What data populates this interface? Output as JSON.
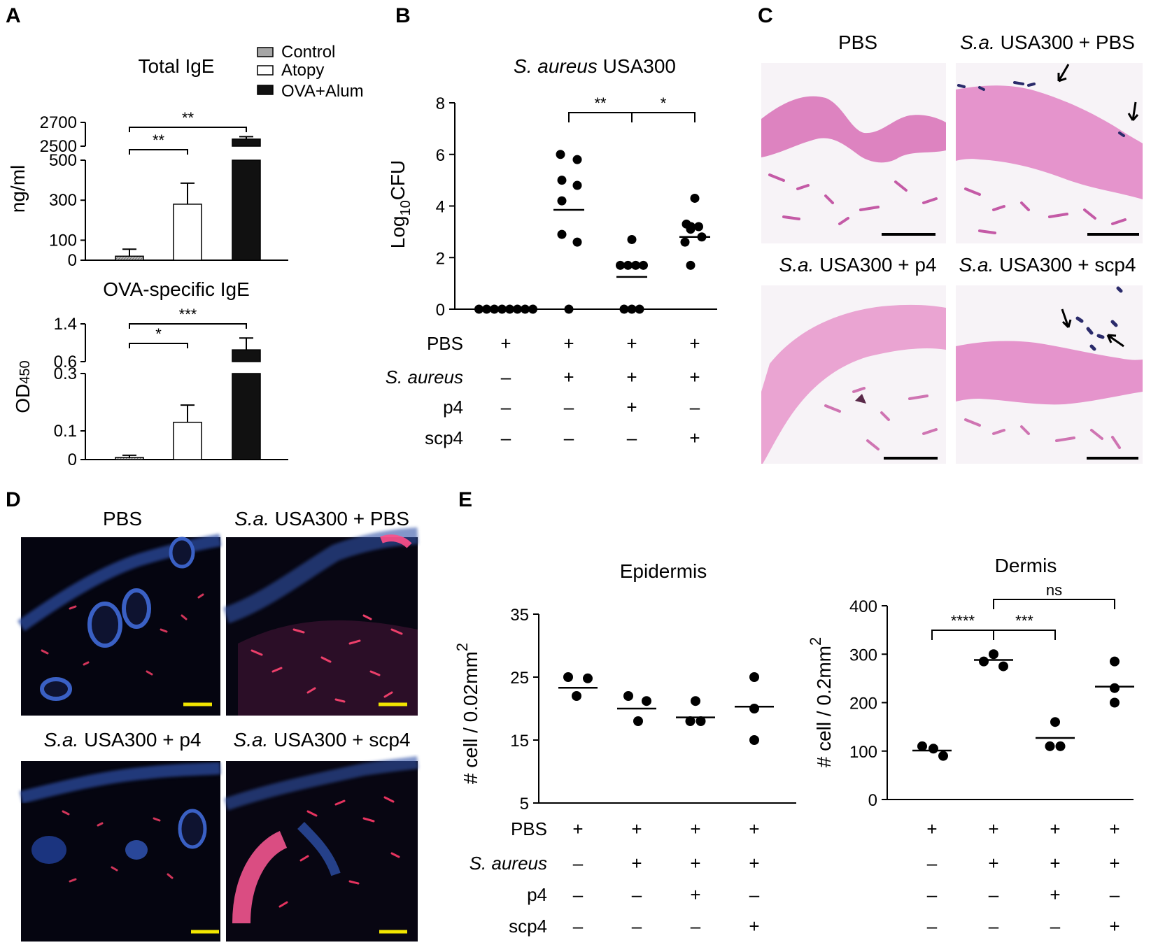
{
  "panels": {
    "A": {
      "letter": "A",
      "legend": [
        {
          "label": "Control",
          "color": "#a6a6a6"
        },
        {
          "label": "Atopy",
          "color": "#ffffff"
        },
        {
          "label": "OVA+Alum",
          "color": "#111111"
        }
      ]
    },
    "B": {
      "letter": "B"
    },
    "C": {
      "letter": "C",
      "images": [
        {
          "label_italic": "",
          "label": "PBS"
        },
        {
          "label_italic": "S.a.",
          "label": " USA300 + PBS"
        },
        {
          "label_italic": "S.a.",
          "label": " USA300 + p4"
        },
        {
          "label_italic": "S.a.",
          "label": " USA300 + scp4"
        }
      ]
    },
    "D": {
      "letter": "D",
      "images": [
        {
          "label_italic": "",
          "label": "PBS"
        },
        {
          "label_italic": "S.a.",
          "label": " USA300 + PBS"
        },
        {
          "label_italic": "S.a.",
          "label": " USA300 + p4"
        },
        {
          "label_italic": "S.a.",
          "label": " USA300 + scp4"
        }
      ]
    },
    "E": {
      "letter": "E"
    }
  },
  "chart_data": [
    {
      "id": "A-top",
      "type": "bar",
      "title": "Total IgE",
      "ylabel": "ng/ml",
      "categories": [
        "Control",
        "Atopy",
        "OVA+Alum"
      ],
      "values": [
        20,
        280,
        2560
      ],
      "errors": [
        35,
        105,
        20
      ],
      "colors": [
        "#a6a6a6",
        "#ffffff",
        "#111111"
      ],
      "broken_axis": {
        "lower": [
          0,
          500
        ],
        "upper": [
          2500,
          2700
        ]
      },
      "yticks_lower": [
        0,
        100,
        300,
        500
      ],
      "yticks_upper": [
        2500,
        2700
      ],
      "yticklabels_lower": [
        "0",
        "100",
        "300",
        "500"
      ],
      "yticklabels_upper": [
        "2500",
        "2700"
      ],
      "significance": [
        {
          "from": 0,
          "to": 1,
          "label": "**"
        },
        {
          "from": 0,
          "to": 2,
          "label": "**"
        }
      ]
    },
    {
      "id": "A-bottom",
      "type": "bar",
      "title": "OVA-specific IgE",
      "ylabel": "OD450",
      "categories": [
        "Control",
        "Atopy",
        "OVA+Alum"
      ],
      "values": [
        0.005,
        0.13,
        0.85
      ],
      "errors": [
        0.01,
        0.06,
        0.25
      ],
      "colors": [
        "#a6a6a6",
        "#ffffff",
        "#111111"
      ],
      "broken_axis": {
        "lower": [
          0,
          0.3
        ],
        "upper": [
          0.6,
          1.4
        ]
      },
      "yticks_lower": [
        0,
        0.1,
        0.3
      ],
      "yticks_upper": [
        0.6,
        1.4
      ],
      "yticklabels_lower": [
        "0",
        "0.1",
        "0.3"
      ],
      "yticklabels_upper": [
        "0.6",
        "1.4"
      ],
      "significance": [
        {
          "from": 0,
          "to": 1,
          "label": "*"
        },
        {
          "from": 0,
          "to": 2,
          "label": "***"
        }
      ]
    },
    {
      "id": "B",
      "type": "scatter",
      "title_italic": "S. aureus",
      "title_rest": " USA300",
      "ylabel_main": "Log",
      "ylabel_sub": "10",
      "ylabel_tail": "CFU",
      "ylim": [
        0,
        8
      ],
      "yticks": [
        0,
        2,
        4,
        6,
        8
      ],
      "groups": [
        {
          "points": [
            0,
            0,
            0,
            0,
            0,
            0,
            0,
            0
          ],
          "mean": 0
        },
        {
          "points": [
            6.0,
            5.8,
            5.0,
            4.8,
            4.2,
            2.9,
            2.6,
            0
          ],
          "mean": 3.85
        },
        {
          "points": [
            2.7,
            1.7,
            1.7,
            1.7,
            1.7,
            0,
            0,
            0
          ],
          "mean": 1.25
        },
        {
          "points": [
            4.3,
            3.3,
            3.2,
            3.2,
            3.1,
            2.8,
            2.6,
            1.7
          ],
          "mean": 2.8
        }
      ],
      "significance": [
        {
          "from": 1,
          "to": 2,
          "label": "**"
        },
        {
          "from": 2,
          "to": 3,
          "label": "*"
        }
      ],
      "conditions": [
        {
          "name": "PBS",
          "italic": false,
          "values": [
            "+",
            "+",
            "+",
            "+"
          ]
        },
        {
          "name": "S. aureus",
          "italic": true,
          "values": [
            "–",
            "+",
            "+",
            "+"
          ]
        },
        {
          "name": "p4",
          "italic": false,
          "values": [
            "–",
            "–",
            "+",
            "–"
          ]
        },
        {
          "name": "scp4",
          "italic": false,
          "values": [
            "–",
            "–",
            "–",
            "+"
          ]
        }
      ]
    },
    {
      "id": "E-epidermis",
      "type": "scatter",
      "title": "Epidermis",
      "ylabel_main": "# cell / 0.02mm",
      "ylabel_sup": "2",
      "ylim": [
        5,
        35
      ],
      "yticks": [
        5,
        15,
        25,
        35
      ],
      "groups": [
        {
          "points": [
            25,
            24.8,
            22
          ],
          "mean": 23.3
        },
        {
          "points": [
            22,
            21.2,
            18
          ],
          "mean": 20
        },
        {
          "points": [
            21.2,
            18,
            18
          ],
          "mean": 18.6
        },
        {
          "points": [
            25,
            20,
            15
          ],
          "mean": 20.3
        }
      ],
      "significance": [],
      "conditions": [
        {
          "name": "PBS",
          "italic": false,
          "values": [
            "+",
            "+",
            "+",
            "+"
          ]
        },
        {
          "name": "S. aureus",
          "italic": true,
          "values": [
            "–",
            "+",
            "+",
            "+"
          ]
        },
        {
          "name": "p4",
          "italic": false,
          "values": [
            "–",
            "–",
            "+",
            "–"
          ]
        },
        {
          "name": "scp4",
          "italic": false,
          "values": [
            "–",
            "–",
            "–",
            "+"
          ]
        }
      ]
    },
    {
      "id": "E-dermis",
      "type": "scatter",
      "title": "Dermis",
      "ylabel_main": "# cell / 0.2mm",
      "ylabel_sup": "2",
      "ylim": [
        0,
        400
      ],
      "yticks": [
        0,
        100,
        200,
        300,
        400
      ],
      "groups": [
        {
          "points": [
            110,
            105,
            90
          ],
          "mean": 101
        },
        {
          "points": [
            300,
            285,
            275
          ],
          "mean": 288
        },
        {
          "points": [
            160,
            110,
            110
          ],
          "mean": 127
        },
        {
          "points": [
            285,
            230,
            200
          ],
          "mean": 233
        }
      ],
      "significance": [
        {
          "from": 0,
          "to": 1,
          "label": "****"
        },
        {
          "from": 1,
          "to": 2,
          "label": "***"
        },
        {
          "from": 1,
          "to": 3,
          "label": "ns"
        }
      ],
      "conditions": [
        {
          "name": "PBS",
          "italic": false,
          "values": [
            "+",
            "+",
            "+",
            "+"
          ]
        },
        {
          "name": "S. aureus",
          "italic": true,
          "values": [
            "–",
            "+",
            "+",
            "+"
          ]
        },
        {
          "name": "p4",
          "italic": false,
          "values": [
            "–",
            "–",
            "+",
            "–"
          ]
        },
        {
          "name": "scp4",
          "italic": false,
          "values": [
            "–",
            "–",
            "–",
            "+"
          ]
        }
      ]
    }
  ]
}
